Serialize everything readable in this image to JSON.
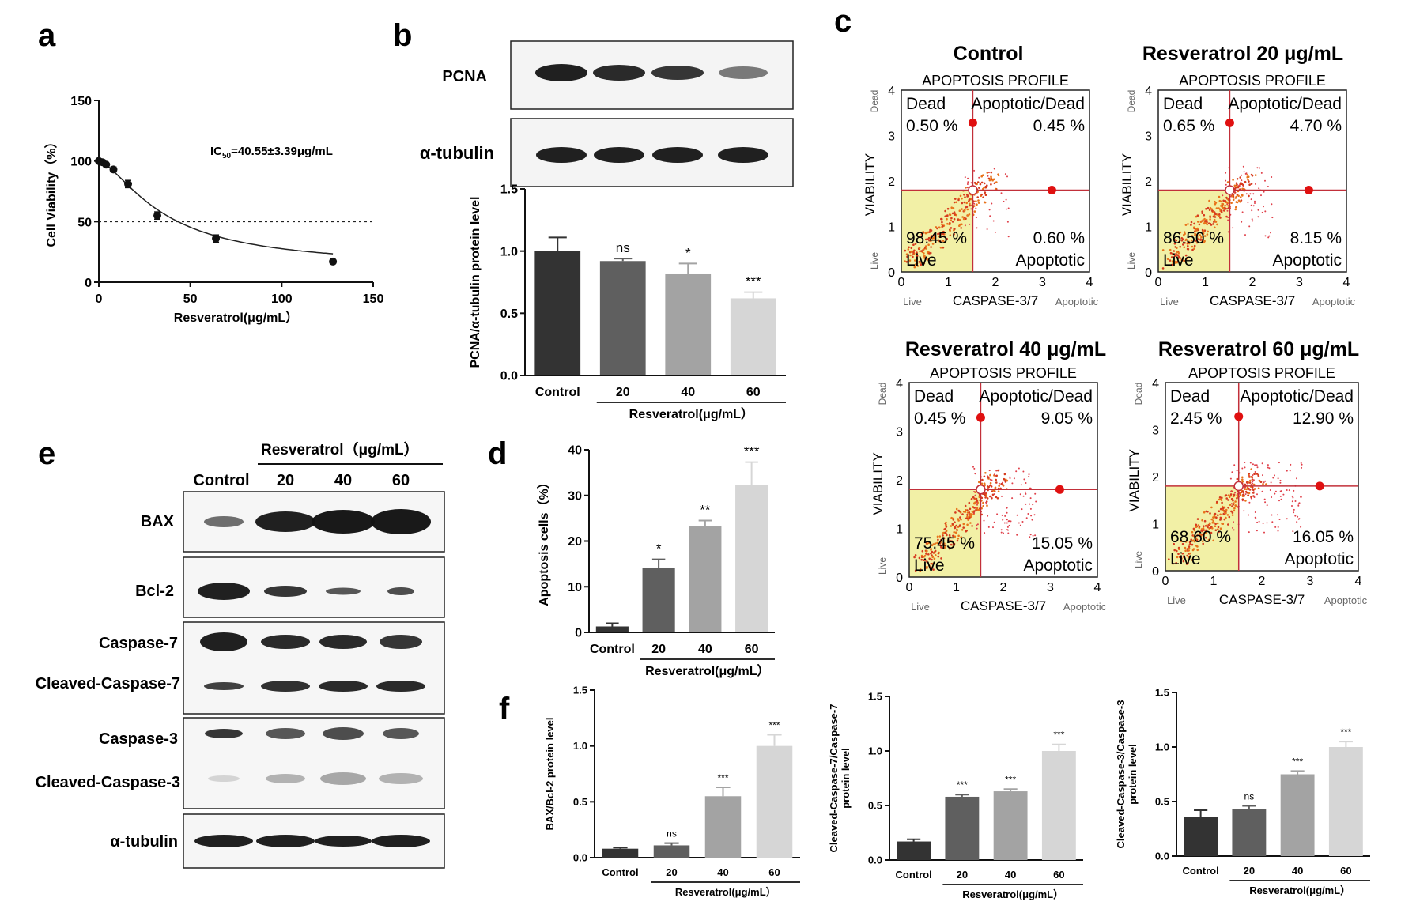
{
  "panel_letters": {
    "a": "a",
    "b": "b",
    "c": "c",
    "d": "d",
    "e": "e",
    "f": "f"
  },
  "panel_a": {
    "chart_data": {
      "type": "scatter",
      "xlabel": "Resveratrol(μg/mL）",
      "ylabel": "Cell Viability（%）",
      "xlim": [
        0,
        150
      ],
      "ylim": [
        0,
        150
      ],
      "xticks": [
        "0",
        "50",
        "100",
        "150"
      ],
      "yticks": [
        "0",
        "50",
        "100",
        "150"
      ],
      "points": [
        {
          "x": 0,
          "y": 100
        },
        {
          "x": 2,
          "y": 99
        },
        {
          "x": 4,
          "y": 97
        },
        {
          "x": 8,
          "y": 93
        },
        {
          "x": 16,
          "y": 81
        },
        {
          "x": 32,
          "y": 55
        },
        {
          "x": 64,
          "y": 36
        },
        {
          "x": 128,
          "y": 17
        }
      ],
      "errors": [
        1,
        1,
        1,
        2,
        3,
        3,
        3,
        1
      ],
      "reference_line_y": 50,
      "fit_curve": true,
      "annotation": "IC",
      "annotation_sub": "50",
      "annotation_rest": "=40.55±3.39μg/mL"
    }
  },
  "panel_b": {
    "blot_labels": [
      "PCNA",
      "α-tubulin"
    ],
    "chart_data": {
      "type": "bar",
      "categories": [
        "Control",
        "20",
        "40",
        "60"
      ],
      "values": [
        1.0,
        0.92,
        0.82,
        0.62
      ],
      "errors": [
        0.11,
        0.02,
        0.08,
        0.05
      ],
      "significance": [
        "",
        "ns",
        "*",
        "***"
      ],
      "ylabel": "PCNA/α-tubulin protein level",
      "xlabel": "Resveratrol(μg/mL）",
      "ylim": [
        0,
        1.5
      ],
      "yticks": [
        "0.0",
        "0.5",
        "1.0",
        "1.5"
      ],
      "colors": [
        "#333333",
        "#5f5f5f",
        "#a3a3a3",
        "#d6d6d6"
      ]
    }
  },
  "panel_c": {
    "profile_label": "APOPTOSIS PROFILE",
    "y_axis": "VIABILITY",
    "x_axis": "CASPASE-3/7",
    "x_live": "Live",
    "x_apoptotic": "Apoptotic",
    "y_live": "Live",
    "y_dead": "Dead",
    "quad_dead": "Dead",
    "quad_apop_dead": "Apoptotic/Dead",
    "quad_live": "Live",
    "quad_apoptotic": "Apoptotic",
    "ticks": [
      "0",
      "1",
      "2",
      "3",
      "4"
    ],
    "plots": [
      {
        "title": "Control",
        "dead": "0.50 %",
        "apop_dead": "0.45 %",
        "live": "98.45 %",
        "apoptotic": "0.60 %"
      },
      {
        "title": "Resveratrol 20 μg/mL",
        "dead": "0.65 %",
        "apop_dead": "4.70 %",
        "live": "86.50 %",
        "apoptotic": "8.15 %"
      },
      {
        "title": "Resveratrol 40 μg/mL",
        "dead": "0.45 %",
        "apop_dead": "9.05 %",
        "live": "75.45 %",
        "apoptotic": "15.05 %"
      },
      {
        "title": "Resveratrol 60 μg/mL",
        "dead": "2.45 %",
        "apop_dead": "12.90 %",
        "live": "68.60 %",
        "apoptotic": "16.05 %"
      }
    ]
  },
  "panel_d": {
    "chart_data": {
      "type": "bar",
      "categories": [
        "Control",
        "20",
        "40",
        "60"
      ],
      "values": [
        1.3,
        14.2,
        23.2,
        32.3
      ],
      "errors": [
        0.7,
        1.8,
        1.3,
        5.0
      ],
      "significance": [
        "",
        "*",
        "**",
        "***"
      ],
      "ylabel": "Apoptosis cells（%）",
      "xlabel": "Resveratrol(μg/mL）",
      "ylim": [
        0,
        40
      ],
      "yticks": [
        "0",
        "10",
        "20",
        "30",
        "40"
      ],
      "colors": [
        "#333333",
        "#5f5f5f",
        "#a3a3a3",
        "#d6d6d6"
      ]
    }
  },
  "panel_e": {
    "treatment_label": "Resveratrol（μg/mL）",
    "lanes": [
      "Control",
      "20",
      "40",
      "60"
    ],
    "row_labels": [
      "BAX",
      "Bcl-2",
      "Caspase-7",
      "Cleaved-Caspase-7",
      "Caspase-3",
      "Cleaved-Caspase-3",
      "α-tubulin"
    ]
  },
  "panel_f": {
    "charts": [
      {
        "type": "bar",
        "categories": [
          "Control",
          "20",
          "40",
          "60"
        ],
        "values": [
          0.08,
          0.11,
          0.55,
          1.0
        ],
        "errors": [
          0.01,
          0.02,
          0.08,
          0.1
        ],
        "significance": [
          "",
          "ns",
          "***",
          "***"
        ],
        "ylabel": "BAX/Bcl-2 protein level",
        "ylabel2": "",
        "xlabel": "Resveratrol(μg/mL）",
        "ylim": [
          0,
          1.5
        ],
        "yticks": [
          "0.0",
          "0.5",
          "1.0",
          "1.5"
        ],
        "colors": [
          "#333333",
          "#5f5f5f",
          "#a3a3a3",
          "#d6d6d6"
        ]
      },
      {
        "type": "bar",
        "categories": [
          "Control",
          "20",
          "40",
          "60"
        ],
        "values": [
          0.17,
          0.58,
          0.63,
          1.0
        ],
        "errors": [
          0.02,
          0.02,
          0.02,
          0.06
        ],
        "significance": [
          "",
          "***",
          "***",
          "***"
        ],
        "ylabel": "Cleaved-Caspase-7/Caspase-7",
        "ylabel2": "protein level",
        "xlabel": "Resveratrol(μg/mL）",
        "ylim": [
          0,
          1.5
        ],
        "yticks": [
          "0.0",
          "0.5",
          "1.0",
          "1.5"
        ],
        "colors": [
          "#333333",
          "#5f5f5f",
          "#a3a3a3",
          "#d6d6d6"
        ]
      },
      {
        "type": "bar",
        "categories": [
          "Control",
          "20",
          "40",
          "60"
        ],
        "values": [
          0.36,
          0.43,
          0.75,
          1.0
        ],
        "errors": [
          0.06,
          0.03,
          0.03,
          0.05
        ],
        "significance": [
          "",
          "ns",
          "***",
          "***"
        ],
        "ylabel": "Cleaved-Caspase-3/Caspase-3",
        "ylabel2": "protein level",
        "xlabel": "Resveratrol(μg/mL）",
        "ylim": [
          0,
          1.5
        ],
        "yticks": [
          "0.0",
          "0.5",
          "1.0",
          "1.5"
        ],
        "colors": [
          "#333333",
          "#5f5f5f",
          "#a3a3a3",
          "#d6d6d6"
        ]
      }
    ]
  }
}
